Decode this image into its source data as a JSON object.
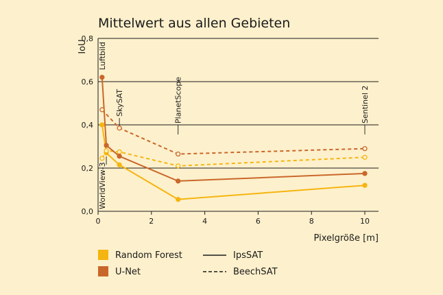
{
  "chart_data": {
    "type": "line",
    "title": "Mittelwert aus allen Gebieten",
    "xlabel": "Pixelgröße [m]",
    "ylabel": "IoU",
    "xlim": [
      0,
      10.4
    ],
    "ylim": [
      0,
      0.8
    ],
    "xticks": [
      0,
      2,
      4,
      6,
      8,
      10
    ],
    "yticks": [
      0.0,
      0.2,
      0.4,
      0.6,
      0.8
    ],
    "xtick_labels": [
      "0",
      "2",
      "4",
      "6",
      "8",
      "10"
    ],
    "ytick_labels": [
      "0,0",
      "0,2",
      "0,4",
      "0,6",
      "0,8"
    ],
    "grid": "horizontal",
    "sensors": [
      {
        "name": "Luftbild",
        "x": 0.15,
        "rotated": true,
        "side": "top"
      },
      {
        "name": "WorldView-3",
        "x": 0.31,
        "rotated": true,
        "side": "bottom"
      },
      {
        "name": "SkySAT",
        "x": 0.8,
        "rotated": true,
        "side": "top"
      },
      {
        "name": "PlanetScope",
        "x": 3.0,
        "rotated": true,
        "side": "top"
      },
      {
        "name": "Sentinel 2",
        "x": 10.0,
        "rotated": true,
        "side": "top"
      }
    ],
    "series": [
      {
        "model": "Random Forest",
        "data": "IpsSAT",
        "color": "#f5b510",
        "dashed": false,
        "filled": true,
        "x": [
          0.15,
          0.31,
          0.8,
          3.0,
          10.0
        ],
        "y": [
          0.4,
          0.27,
          0.215,
          0.055,
          0.12
        ]
      },
      {
        "model": "Random Forest",
        "data": "BeechSAT",
        "color": "#f5b510",
        "dashed": true,
        "filled": false,
        "x": [
          0.15,
          0.31,
          0.8,
          3.0,
          10.0
        ],
        "y": [
          0.245,
          0.28,
          0.275,
          0.21,
          0.25
        ]
      },
      {
        "model": "U-Net",
        "data": "IpsSAT",
        "color": "#c9672a",
        "dashed": false,
        "filled": true,
        "x": [
          0.15,
          0.31,
          0.8,
          3.0,
          10.0
        ],
        "y": [
          0.62,
          0.305,
          0.255,
          0.14,
          0.175
        ]
      },
      {
        "model": "U-Net",
        "data": "BeechSAT",
        "color": "#c9672a",
        "dashed": true,
        "filled": false,
        "x": [
          0.15,
          0.8,
          3.0,
          10.0
        ],
        "y": [
          0.47,
          0.385,
          0.265,
          0.29
        ]
      }
    ],
    "legend": {
      "placement": "bottom",
      "models": [
        {
          "label": "Random Forest",
          "color": "#f5b510"
        },
        {
          "label": "U-Net",
          "color": "#c9672a"
        }
      ],
      "line_styles": [
        {
          "label": "IpsSAT",
          "dashed": false
        },
        {
          "label": "BeechSAT",
          "dashed": true
        }
      ]
    }
  }
}
